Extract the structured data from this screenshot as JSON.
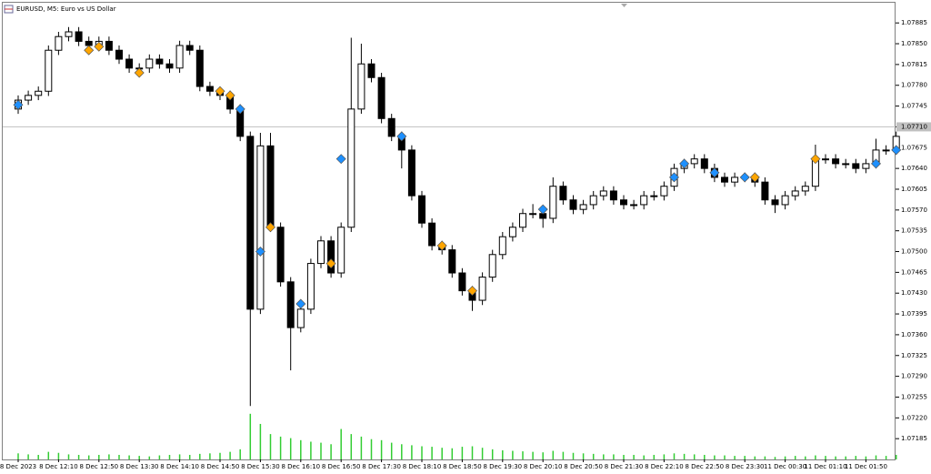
{
  "chart_data": {
    "type": "candlestick",
    "title": "EURUSD, M5:  Euro vs US Dollar",
    "categories": [
      "8 Dec 2023",
      null,
      null,
      null,
      "8 Dec 12:10",
      null,
      null,
      null,
      "8 Dec 12:50",
      null,
      null,
      null,
      "8 Dec 13:30",
      null,
      null,
      null,
      "8 Dec 14:10",
      null,
      null,
      null,
      "8 Dec 14:50",
      null,
      null,
      null,
      "8 Dec 15:30",
      null,
      null,
      null,
      "8 Dec 16:10",
      null,
      null,
      null,
      "8 Dec 16:50",
      null,
      null,
      null,
      "8 Dec 17:30",
      null,
      null,
      null,
      "8 Dec 18:10",
      null,
      null,
      null,
      "8 Dec 18:50",
      null,
      null,
      null,
      "8 Dec 19:30",
      null,
      null,
      null,
      "8 Dec 20:10",
      null,
      null,
      null,
      "8 Dec 20:50",
      null,
      null,
      null,
      "8 Dec 21:30",
      null,
      null,
      null,
      "8 Dec 22:10",
      null,
      null,
      null,
      "8 Dec 22:50",
      null,
      null,
      null,
      "8 Dec 23:30",
      null,
      null,
      null,
      "11 Dec 00:30",
      null,
      null,
      null,
      "11 Dec 01:10",
      null,
      null,
      null,
      "11 Dec 01:50",
      null,
      null,
      null
    ],
    "open": [
      1.0774,
      1.07755,
      1.07763,
      1.0777,
      1.07839,
      1.07862,
      1.0787,
      1.07854,
      1.07847,
      1.07854,
      1.07839,
      1.07824,
      1.07809,
      1.07809,
      1.07824,
      1.07816,
      1.07809,
      1.07847,
      1.07839,
      1.07778,
      1.0777,
      1.07763,
      1.0774,
      1.07694,
      1.07403,
      1.07678,
      1.07541,
      1.07449,
      1.07372,
      1.07403,
      1.0748,
      1.07518,
      1.07464,
      1.07541,
      1.0774,
      1.07816,
      1.07793,
      1.07724,
      1.07694,
      1.07671,
      1.07594,
      1.07548,
      1.0751,
      1.07503,
      1.07464,
      1.07434,
      1.07418,
      1.07457,
      1.07495,
      1.07525,
      1.07541,
      1.07564,
      1.07564,
      1.07556,
      1.0761,
      1.07587,
      1.07571,
      1.07579,
      1.07594,
      1.07602,
      1.07587,
      1.07579,
      1.07579,
      1.07594,
      1.07594,
      1.0761,
      1.0764,
      1.07648,
      1.07656,
      1.0764,
      1.07625,
      1.07617,
      1.07625,
      1.07625,
      1.07617,
      1.07587,
      1.07579,
      1.07594,
      1.07602,
      1.0761,
      1.07656,
      1.07656,
      1.07648,
      1.07648,
      1.0764,
      1.07648,
      1.07671,
      1.07671
    ],
    "high": [
      1.07763,
      1.07771,
      1.07778,
      1.07847,
      1.0787,
      1.07878,
      1.07878,
      1.07862,
      1.07862,
      1.07862,
      1.07847,
      1.07832,
      1.07817,
      1.07832,
      1.07832,
      1.07824,
      1.07855,
      1.07855,
      1.07847,
      1.07786,
      1.07778,
      1.07771,
      1.07748,
      1.07702,
      1.077,
      1.077,
      1.07549,
      1.07457,
      1.07411,
      1.07488,
      1.07526,
      1.07526,
      1.07549,
      1.0786,
      1.0785,
      1.07824,
      1.07801,
      1.07732,
      1.07702,
      1.07679,
      1.07602,
      1.07556,
      1.07518,
      1.07511,
      1.07472,
      1.07442,
      1.07465,
      1.07503,
      1.07533,
      1.07549,
      1.07572,
      1.0758,
      1.07572,
      1.07625,
      1.07618,
      1.07595,
      1.07587,
      1.07602,
      1.0761,
      1.0761,
      1.07595,
      1.07587,
      1.07602,
      1.07602,
      1.07618,
      1.07648,
      1.07656,
      1.07664,
      1.07664,
      1.07648,
      1.07633,
      1.07633,
      1.07633,
      1.07633,
      1.07625,
      1.07595,
      1.07602,
      1.0761,
      1.07618,
      1.0768,
      1.07664,
      1.07664,
      1.07656,
      1.07656,
      1.07656,
      1.0769,
      1.07679,
      1.07702
    ],
    "low": [
      1.07732,
      1.07747,
      1.07755,
      1.07762,
      1.07831,
      1.07854,
      1.07846,
      1.07839,
      1.07839,
      1.07831,
      1.07816,
      1.07801,
      1.07801,
      1.07801,
      1.07808,
      1.07801,
      1.07801,
      1.07831,
      1.0777,
      1.07762,
      1.07755,
      1.07732,
      1.07686,
      1.0724,
      1.07395,
      1.07533,
      1.07441,
      1.073,
      1.07364,
      1.07395,
      1.07472,
      1.07456,
      1.07456,
      1.07533,
      1.07732,
      1.07785,
      1.07716,
      1.07686,
      1.0764,
      1.07586,
      1.0754,
      1.07502,
      1.07495,
      1.07456,
      1.07426,
      1.074,
      1.0741,
      1.07449,
      1.07487,
      1.07517,
      1.07533,
      1.07556,
      1.0754,
      1.07548,
      1.07579,
      1.07563,
      1.07563,
      1.07571,
      1.07586,
      1.07579,
      1.07571,
      1.07571,
      1.07571,
      1.07586,
      1.07586,
      1.07602,
      1.07632,
      1.0764,
      1.07632,
      1.07617,
      1.07609,
      1.07609,
      1.07617,
      1.07609,
      1.07579,
      1.07565,
      1.07571,
      1.07586,
      1.07594,
      1.07602,
      1.07648,
      1.0764,
      1.0764,
      1.07632,
      1.07632,
      1.0764,
      1.07663,
      1.07663
    ],
    "close": [
      1.07755,
      1.07763,
      1.0777,
      1.07839,
      1.07862,
      1.0787,
      1.07854,
      1.07847,
      1.07854,
      1.07839,
      1.07824,
      1.07809,
      1.07809,
      1.07824,
      1.07816,
      1.07809,
      1.07847,
      1.07839,
      1.07778,
      1.0777,
      1.07763,
      1.0774,
      1.07694,
      1.07403,
      1.07678,
      1.07541,
      1.07449,
      1.07372,
      1.07403,
      1.0748,
      1.07518,
      1.07464,
      1.07541,
      1.0774,
      1.07816,
      1.07793,
      1.07724,
      1.07694,
      1.07671,
      1.07594,
      1.07548,
      1.0751,
      1.07503,
      1.07464,
      1.07434,
      1.07418,
      1.07457,
      1.07495,
      1.07525,
      1.07541,
      1.07564,
      1.07564,
      1.07556,
      1.0761,
      1.07587,
      1.07571,
      1.07579,
      1.07594,
      1.07602,
      1.07587,
      1.07579,
      1.07579,
      1.07594,
      1.07594,
      1.0761,
      1.0764,
      1.07648,
      1.07656,
      1.0764,
      1.07625,
      1.07617,
      1.07625,
      1.07625,
      1.07617,
      1.07587,
      1.07579,
      1.07594,
      1.07602,
      1.0761,
      1.07656,
      1.07656,
      1.07648,
      1.07648,
      1.0764,
      1.07648,
      1.07671,
      1.07671,
      1.07694
    ],
    "bull_color": "#ffffff",
    "bear_color": "#000000",
    "ylim": [
      1.0715,
      1.07919
    ],
    "yticks": [
      1.07885,
      {
        "value": 1.0785,
        "label": "1.07850"
      },
      1.07815,
      {
        "value": 1.0778,
        "label": "1.07780"
      },
      1.07745,
      {
        "value": 1.0771,
        "label": "1.07710"
      },
      1.07675,
      {
        "value": 1.0764,
        "label": "1.07640"
      },
      1.07605,
      {
        "value": 1.0757,
        "label": "1.07570"
      },
      1.07535,
      {
        "value": 1.075,
        "label": "1.07500"
      },
      1.07465,
      {
        "value": 1.0743,
        "label": "1.07430"
      },
      1.07395,
      {
        "value": 1.0736,
        "label": "1.07360"
      },
      1.07325,
      {
        "value": 1.0729,
        "label": "1.07290"
      },
      1.07255,
      {
        "value": 1.0722,
        "label": "1.07220"
      },
      1.07185
    ],
    "price_line": 1.0771,
    "y2lim": [
      0,
      9000
    ],
    "volume": {
      "color": "#32cd32",
      "values": [
        120,
        100,
        90,
        150,
        130,
        100,
        90,
        80,
        90,
        100,
        90,
        80,
        70,
        60,
        80,
        90,
        100,
        90,
        110,
        120,
        130,
        150,
        200,
        900,
        700,
        500,
        450,
        420,
        380,
        350,
        330,
        300,
        600,
        500,
        450,
        400,
        380,
        330,
        300,
        280,
        260,
        250,
        230,
        220,
        250,
        260,
        230,
        200,
        180,
        170,
        160,
        150,
        140,
        170,
        150,
        130,
        120,
        110,
        100,
        100,
        90,
        90,
        80,
        90,
        100,
        120,
        110,
        100,
        90,
        80,
        80,
        70,
        70,
        60,
        60,
        50,
        60,
        70,
        60,
        80,
        70,
        60,
        60,
        70,
        60,
        80,
        70,
        90
      ]
    },
    "signals": [
      {
        "color": "#1e90ff",
        "values": [
          1.07747,
          null,
          null,
          null,
          null,
          null,
          null,
          null,
          null,
          null,
          null,
          null,
          null,
          null,
          null,
          null,
          null,
          null,
          null,
          null,
          null,
          null,
          1.0774,
          null,
          1.075,
          null,
          null,
          null,
          1.07412,
          null,
          null,
          null,
          1.07656,
          null,
          null,
          null,
          null,
          null,
          1.07694,
          null,
          null,
          null,
          null,
          null,
          null,
          null,
          null,
          null,
          null,
          null,
          null,
          null,
          1.07571,
          null,
          null,
          null,
          null,
          null,
          null,
          null,
          null,
          null,
          null,
          null,
          null,
          1.07625,
          1.07648,
          null,
          null,
          1.07633,
          null,
          null,
          1.07625,
          null,
          null,
          null,
          null,
          null,
          null,
          null,
          null,
          null,
          null,
          null,
          null,
          1.07648,
          null,
          1.07671
        ]
      },
      {
        "color": "#ffa500",
        "values": [
          null,
          null,
          null,
          null,
          null,
          null,
          null,
          1.07839,
          1.07845,
          null,
          null,
          null,
          1.07801,
          null,
          null,
          null,
          null,
          null,
          null,
          null,
          1.0777,
          1.07763,
          null,
          null,
          null,
          1.07541,
          null,
          null,
          null,
          null,
          null,
          1.0748,
          null,
          null,
          null,
          null,
          null,
          null,
          null,
          null,
          null,
          null,
          1.0751,
          null,
          null,
          1.07434,
          null,
          null,
          null,
          null,
          null,
          null,
          null,
          null,
          null,
          null,
          null,
          null,
          null,
          null,
          null,
          null,
          null,
          null,
          null,
          null,
          null,
          null,
          null,
          null,
          null,
          null,
          null,
          1.07625,
          null,
          null,
          null,
          null,
          null,
          1.07656,
          null,
          null,
          null,
          null,
          null,
          null,
          null,
          null
        ]
      }
    ]
  }
}
